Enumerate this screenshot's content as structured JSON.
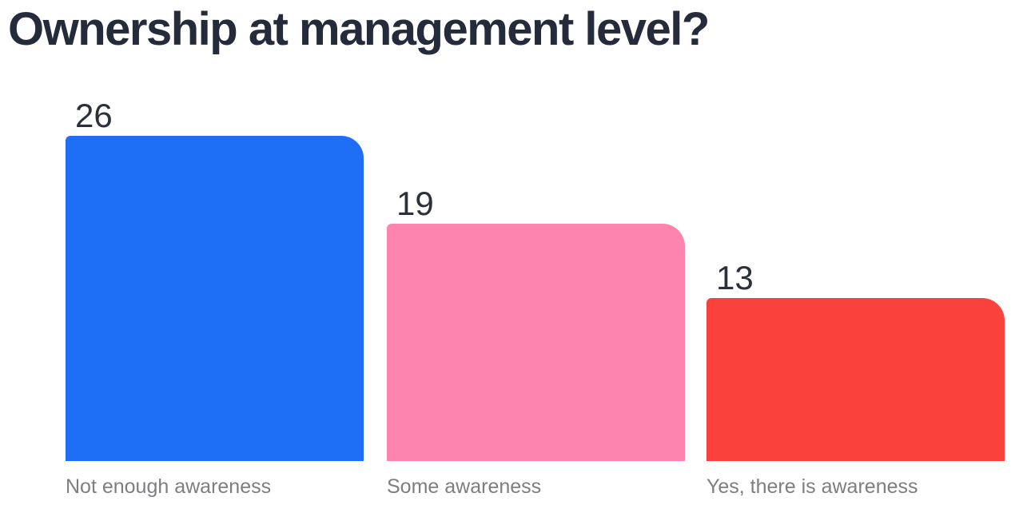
{
  "chart_data": {
    "type": "bar",
    "title": "Ownership at management level?",
    "categories": [
      "Not enough awareness",
      "Some awareness",
      "Yes, there is awareness"
    ],
    "values": [
      26,
      19,
      13
    ],
    "bar_colors": [
      "#1e6ef6",
      "#fc84ae",
      "#fb413b"
    ],
    "value_labels": [
      "26",
      "19",
      "13"
    ],
    "xlabel": "",
    "ylabel": "",
    "ylim": [
      0,
      26
    ],
    "grid": false,
    "legend": false,
    "background_color": "#ffffff",
    "title_color": "#242b3a",
    "value_label_color": "#2b303b",
    "category_label_color": "#7d7d83"
  }
}
